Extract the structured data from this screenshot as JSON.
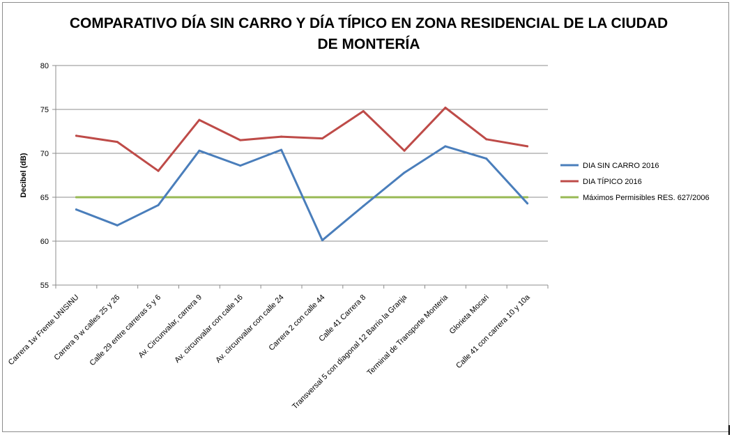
{
  "chart_data": {
    "type": "line",
    "title_lines": [
      "COMPARATIVO DÍA SIN CARRO Y DÍA TÍPICO EN ZONA RESIDENCIAL DE LA CIUDAD",
      "DE MONTERÍA"
    ],
    "ylabel": "Decibel (dB)",
    "xlabel": "",
    "ylim": [
      55,
      80
    ],
    "yticks": [
      55,
      60,
      65,
      70,
      75,
      80
    ],
    "grid": true,
    "legend_position": "right",
    "categories": [
      "Carrera 1w Frente UNISINU",
      "Carrera 9 w calles 25 y 26",
      "Calle 29 entre carreras 5 y 6",
      "Av. Circunvalar, carrera 9",
      "Av. circunvalar con calle 16",
      "Av. circunvalar con calle 24",
      "Carrera 2 con calle 44",
      "Calle 41 Carrera 8",
      "Transversal 5 con diagonal 12 Barrio la Granja",
      "Terminal de Transporte Monteria",
      "Glorieta Mocari",
      "Calle 41 con carrera 10 y 10a"
    ],
    "series": [
      {
        "name": "DIA SIN CARRO 2016",
        "color": "#4a7ebb",
        "values": [
          63.6,
          61.8,
          64.1,
          70.3,
          68.6,
          70.4,
          60.1,
          64.0,
          67.8,
          70.8,
          69.4,
          64.3
        ]
      },
      {
        "name": "DIA TÍPICO 2016",
        "color": "#be4b48",
        "values": [
          72.0,
          71.3,
          68.0,
          73.8,
          71.5,
          71.9,
          71.7,
          74.8,
          70.3,
          75.2,
          71.6,
          70.8
        ]
      },
      {
        "name": "Máximos Permisibles RES.  627/2006",
        "color": "#98b954",
        "values": [
          65,
          65,
          65,
          65,
          65,
          65,
          65,
          65,
          65,
          65,
          65,
          65
        ]
      }
    ]
  }
}
